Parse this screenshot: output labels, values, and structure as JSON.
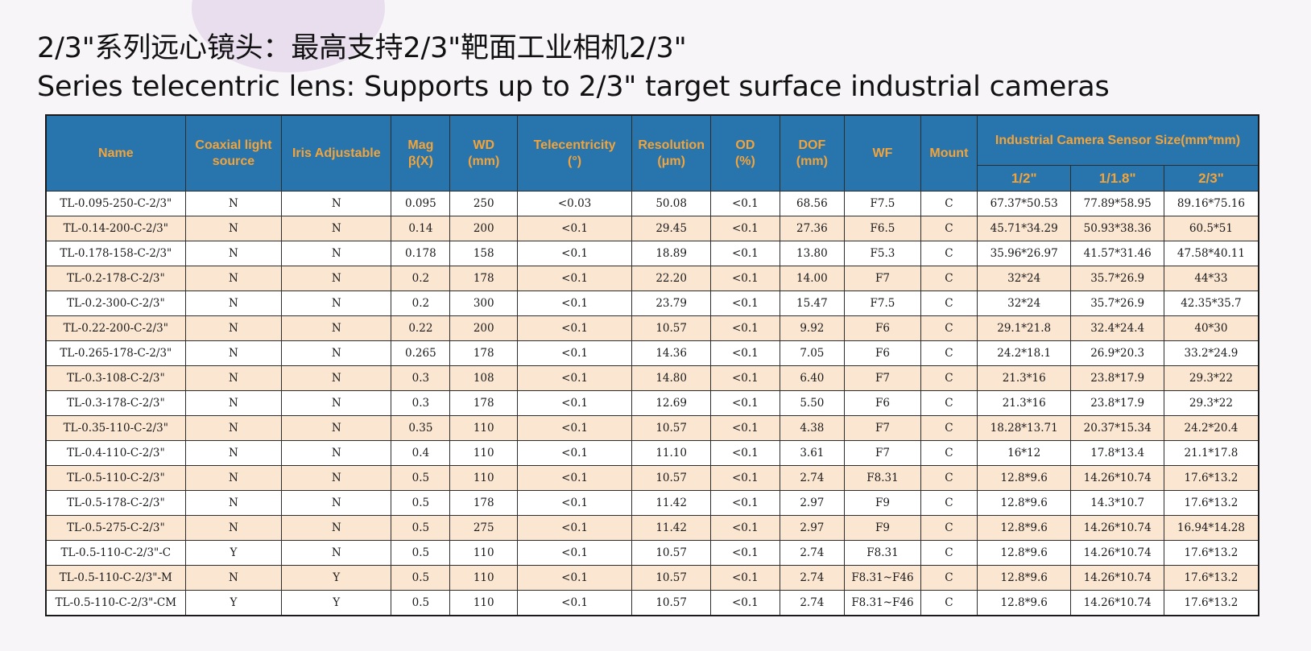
{
  "title": {
    "line1": "2/3\"系列远心镜头：最高支持2/3\"靶面工业相机2/3\"",
    "line2": "Series telecentric lens: Supports up to 2/3\" target surface industrial cameras"
  },
  "table": {
    "headers": {
      "name": "Name",
      "coaxial": [
        "Coaxial light",
        "source"
      ],
      "iris": "Iris Adjustable",
      "mag": [
        "Mag",
        "β(X)"
      ],
      "wd": [
        "WD",
        "(mm)"
      ],
      "tele": [
        "Telecentricity",
        "(°)"
      ],
      "res": [
        "Resolution",
        "(μm)"
      ],
      "od": [
        "OD",
        "(%)"
      ],
      "dof": [
        "DOF",
        "(mm)"
      ],
      "wf": "WF",
      "mount": "Mount",
      "sensor_group": "Industrial Camera Sensor Size(mm*mm)",
      "sensor_sizes": [
        "1/2\"",
        "1/1.8\"",
        "2/3\""
      ]
    },
    "rows": [
      [
        "TL-0.095-250-C-2/3\"",
        "N",
        "N",
        "0.095",
        "250",
        "<0.03",
        "50.08",
        "<0.1",
        "68.56",
        "F7.5",
        "C",
        "67.37*50.53",
        "77.89*58.95",
        "89.16*75.16"
      ],
      [
        "TL-0.14-200-C-2/3\"",
        "N",
        "N",
        "0.14",
        "200",
        "<0.1",
        "29.45",
        "<0.1",
        "27.36",
        "F6.5",
        "C",
        "45.71*34.29",
        "50.93*38.36",
        "60.5*51"
      ],
      [
        "TL-0.178-158-C-2/3\"",
        "N",
        "N",
        "0.178",
        "158",
        "<0.1",
        "18.89",
        "<0.1",
        "13.80",
        "F5.3",
        "C",
        "35.96*26.97",
        "41.57*31.46",
        "47.58*40.11"
      ],
      [
        "TL-0.2-178-C-2/3\"",
        "N",
        "N",
        "0.2",
        "178",
        "<0.1",
        "22.20",
        "<0.1",
        "14.00",
        "F7",
        "C",
        "32*24",
        "35.7*26.9",
        "44*33"
      ],
      [
        "TL-0.2-300-C-2/3\"",
        "N",
        "N",
        "0.2",
        "300",
        "<0.1",
        "23.79",
        "<0.1",
        "15.47",
        "F7.5",
        "C",
        "32*24",
        "35.7*26.9",
        "42.35*35.7"
      ],
      [
        "TL-0.22-200-C-2/3\"",
        "N",
        "N",
        "0.22",
        "200",
        "<0.1",
        "10.57",
        "<0.1",
        "9.92",
        "F6",
        "C",
        "29.1*21.8",
        "32.4*24.4",
        "40*30"
      ],
      [
        "TL-0.265-178-C-2/3\"",
        "N",
        "N",
        "0.265",
        "178",
        "<0.1",
        "14.36",
        "<0.1",
        "7.05",
        "F6",
        "C",
        "24.2*18.1",
        "26.9*20.3",
        "33.2*24.9"
      ],
      [
        "TL-0.3-108-C-2/3\"",
        "N",
        "N",
        "0.3",
        "108",
        "<0.1",
        "14.80",
        "<0.1",
        "6.40",
        "F7",
        "C",
        "21.3*16",
        "23.8*17.9",
        "29.3*22"
      ],
      [
        "TL-0.3-178-C-2/3\"",
        "N",
        "N",
        "0.3",
        "178",
        "<0.1",
        "12.69",
        "<0.1",
        "5.50",
        "F6",
        "C",
        "21.3*16",
        "23.8*17.9",
        "29.3*22"
      ],
      [
        "TL-0.35-110-C-2/3\"",
        "N",
        "N",
        "0.35",
        "110",
        "<0.1",
        "10.57",
        "<0.1",
        "4.38",
        "F7",
        "C",
        "18.28*13.71",
        "20.37*15.34",
        "24.2*20.4"
      ],
      [
        "TL-0.4-110-C-2/3\"",
        "N",
        "N",
        "0.4",
        "110",
        "<0.1",
        "11.10",
        "<0.1",
        "3.61",
        "F7",
        "C",
        "16*12",
        "17.8*13.4",
        "21.1*17.8"
      ],
      [
        "TL-0.5-110-C-2/3\"",
        "N",
        "N",
        "0.5",
        "110",
        "<0.1",
        "10.57",
        "<0.1",
        "2.74",
        "F8.31",
        "C",
        "12.8*9.6",
        "14.26*10.74",
        "17.6*13.2"
      ],
      [
        "TL-0.5-178-C-2/3\"",
        "N",
        "N",
        "0.5",
        "178",
        "<0.1",
        "11.42",
        "<0.1",
        "2.97",
        "F9",
        "C",
        "12.8*9.6",
        "14.3*10.7",
        "17.6*13.2"
      ],
      [
        "TL-0.5-275-C-2/3\"",
        "N",
        "N",
        "0.5",
        "275",
        "<0.1",
        "11.42",
        "<0.1",
        "2.97",
        "F9",
        "C",
        "12.8*9.6",
        "14.26*10.74",
        "16.94*14.28"
      ],
      [
        "TL-0.5-110-C-2/3\"-C",
        "Y",
        "N",
        "0.5",
        "110",
        "<0.1",
        "10.57",
        "<0.1",
        "2.74",
        "F8.31",
        "C",
        "12.8*9.6",
        "14.26*10.74",
        "17.6*13.2"
      ],
      [
        "TL-0.5-110-C-2/3\"-M",
        "N",
        "Y",
        "0.5",
        "110",
        "<0.1",
        "10.57",
        "<0.1",
        "2.74",
        "F8.31~F46",
        "C",
        "12.8*9.6",
        "14.26*10.74",
        "17.6*13.2"
      ],
      [
        "TL-0.5-110-C-2/3\"-CM",
        "Y",
        "Y",
        "0.5",
        "110",
        "<0.1",
        "10.57",
        "<0.1",
        "2.74",
        "F8.31~F46",
        "C",
        "12.8*9.6",
        "14.26*10.74",
        "17.6*13.2"
      ]
    ]
  },
  "colors": {
    "header_bg": "#2874ad",
    "header_text": "#f2a43a",
    "row_alt_bg": "#fbe6d2",
    "row_bg": "#ffffff",
    "page_bg": "#f8f5f9"
  }
}
